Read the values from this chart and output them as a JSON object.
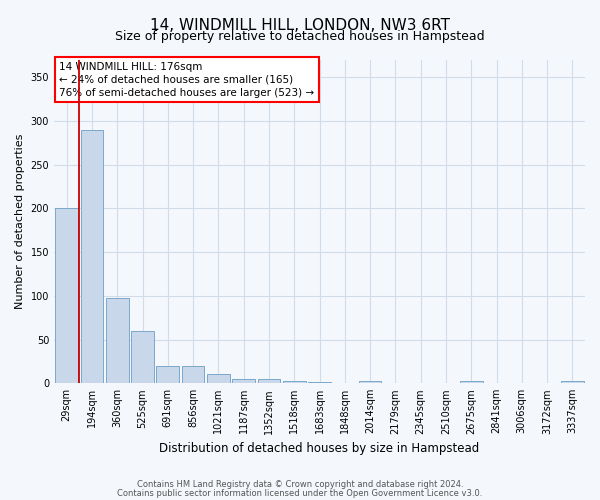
{
  "title": "14, WINDMILL HILL, LONDON, NW3 6RT",
  "subtitle": "Size of property relative to detached houses in Hampstead",
  "xlabel": "Distribution of detached houses by size in Hampstead",
  "ylabel": "Number of detached properties",
  "bar_color": "#c8d8ea",
  "bar_edge_color": "#7aa8cc",
  "grid_color": "#d0dcea",
  "categories": [
    "29sqm",
    "194sqm",
    "360sqm",
    "525sqm",
    "691sqm",
    "856sqm",
    "1021sqm",
    "1187sqm",
    "1352sqm",
    "1518sqm",
    "1683sqm",
    "1848sqm",
    "2014sqm",
    "2179sqm",
    "2345sqm",
    "2510sqm",
    "2675sqm",
    "2841sqm",
    "3006sqm",
    "3172sqm",
    "3337sqm"
  ],
  "values": [
    200,
    290,
    98,
    60,
    20,
    20,
    10,
    5,
    5,
    3,
    1,
    0,
    3,
    0,
    0,
    0,
    3,
    0,
    0,
    0,
    3
  ],
  "property_line_color": "#cc0000",
  "property_line_x": 0.5,
  "ylim": [
    0,
    370
  ],
  "yticks": [
    0,
    50,
    100,
    150,
    200,
    250,
    300,
    350
  ],
  "annotation_text": "14 WINDMILL HILL: 176sqm\n← 24% of detached houses are smaller (165)\n76% of semi-detached houses are larger (523) →",
  "footer_line1": "Contains HM Land Registry data © Crown copyright and database right 2024.",
  "footer_line2": "Contains public sector information licensed under the Open Government Licence v3.0.",
  "background_color": "#f4f8fc",
  "title_fontsize": 11,
  "subtitle_fontsize": 9,
  "ylabel_fontsize": 8,
  "xlabel_fontsize": 8.5,
  "tick_fontsize": 7,
  "annotation_fontsize": 7.5,
  "footer_fontsize": 6
}
